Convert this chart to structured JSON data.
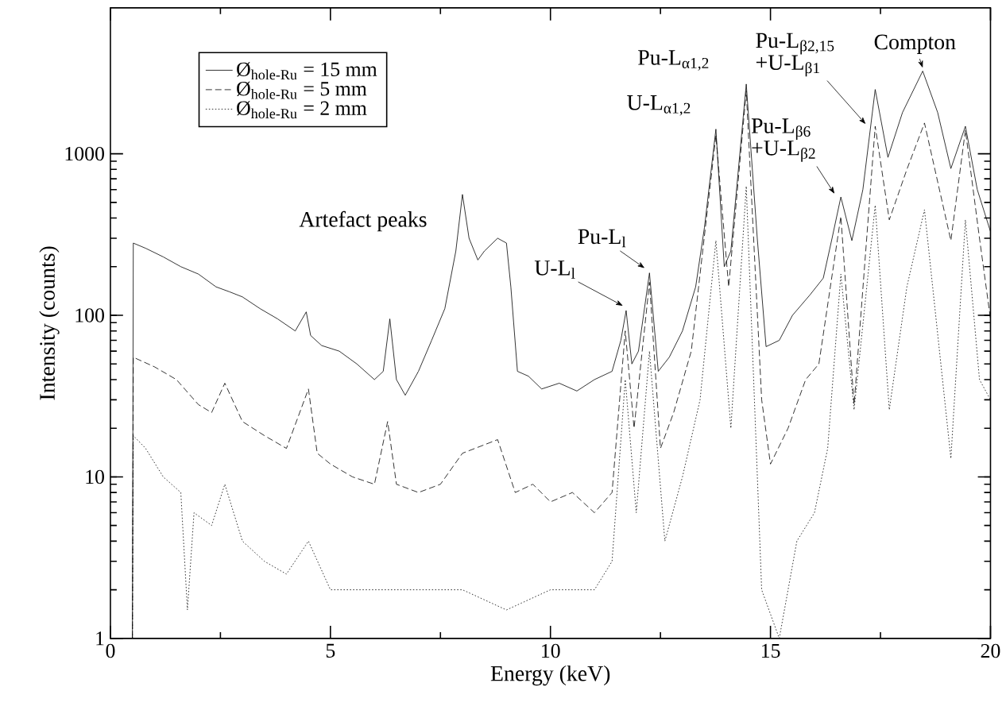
{
  "chart_data": {
    "type": "line",
    "xlabel": "Energy (keV)",
    "ylabel": "Intensity (counts)",
    "log": "y",
    "xlim": [
      0,
      20
    ],
    "ylim": [
      1,
      8000
    ],
    "xticks": [
      0,
      5,
      10,
      15,
      20
    ],
    "yticks": [
      1,
      10,
      100,
      1000
    ],
    "legend": "top left",
    "marker": "none",
    "series": [
      {
        "name": "Ø$_{hole-Ru}$ = 15 mm",
        "color": "#000000",
        "line_style": "solid",
        "x": [
          0.5,
          0.52,
          0.8,
          1.2,
          1.6,
          2.0,
          2.4,
          2.7,
          3.0,
          3.4,
          3.8,
          4.2,
          4.45,
          4.55,
          4.8,
          5.2,
          5.6,
          6.0,
          6.2,
          6.35,
          6.5,
          6.7,
          7.0,
          7.3,
          7.6,
          7.85,
          8.0,
          8.15,
          8.35,
          8.5,
          8.8,
          9.0,
          9.1,
          9.25,
          9.5,
          9.8,
          10.2,
          10.6,
          11.0,
          11.4,
          11.6,
          11.72,
          11.85,
          12.0,
          12.25,
          12.45,
          12.7,
          13.0,
          13.3,
          13.5,
          13.76,
          13.95,
          14.1,
          14.45,
          14.7,
          14.9,
          15.2,
          15.5,
          15.9,
          16.2,
          16.4,
          16.6,
          16.85,
          17.1,
          17.38,
          17.67,
          18.0,
          18.46,
          18.8,
          19.1,
          19.43,
          19.7,
          20.0
        ],
        "values": [
          1,
          280,
          260,
          230,
          200,
          180,
          150,
          140,
          130,
          110,
          95,
          80,
          105,
          75,
          65,
          60,
          50,
          40,
          45,
          95,
          40,
          32,
          45,
          70,
          110,
          250,
          560,
          300,
          220,
          250,
          300,
          280,
          150,
          45,
          42,
          35,
          38,
          34,
          40,
          45,
          70,
          107,
          50,
          60,
          183,
          45,
          55,
          80,
          150,
          350,
          1420,
          200,
          250,
          2700,
          300,
          64,
          70,
          100,
          134,
          170,
          300,
          540,
          290,
          600,
          2500,
          950,
          1800,
          3250,
          1800,
          810,
          1480,
          600,
          330
        ]
      },
      {
        "name": "Ø$_{hole-Ru}$ = 5 mm",
        "color": "#000000",
        "line_style": "dashed",
        "x": [
          0.5,
          0.52,
          1.0,
          1.5,
          2.0,
          2.3,
          2.6,
          3.0,
          3.5,
          4.0,
          4.5,
          4.7,
          5.0,
          5.5,
          6.0,
          6.3,
          6.5,
          7.0,
          7.5,
          8.0,
          8.8,
          9.2,
          9.6,
          10.0,
          10.5,
          11.0,
          11.4,
          11.7,
          11.9,
          12.25,
          12.5,
          12.8,
          13.2,
          13.76,
          14.05,
          14.45,
          14.8,
          15.0,
          15.4,
          15.8,
          16.1,
          16.6,
          16.9,
          17.38,
          17.7,
          18.1,
          18.5,
          19.1,
          19.43,
          19.75,
          20.0
        ],
        "values": [
          1,
          55,
          48,
          40,
          28,
          25,
          38,
          22,
          18,
          15,
          35,
          14,
          12,
          10,
          9,
          22,
          9,
          8,
          9,
          14,
          17,
          8,
          9,
          7,
          8,
          6,
          8,
          80,
          20,
          160,
          15,
          25,
          60,
          1300,
          150,
          2450,
          30,
          12,
          20,
          40,
          50,
          410,
          28,
          1480,
          390,
          800,
          1550,
          290,
          1400,
          300,
          95
        ]
      },
      {
        "name": "Ø$_{hole-Ru}$ = 2 mm",
        "color": "#000000",
        "line_style": "dotted",
        "x": [
          0.5,
          0.52,
          0.8,
          1.2,
          1.6,
          1.75,
          1.9,
          2.3,
          2.6,
          3.0,
          3.5,
          4.0,
          4.5,
          5.0,
          6.0,
          7.0,
          8.0,
          9.0,
          10.0,
          11.0,
          11.4,
          11.7,
          11.95,
          12.25,
          12.6,
          13.0,
          13.4,
          13.76,
          14.1,
          14.45,
          14.8,
          15.2,
          15.6,
          16.0,
          16.3,
          16.6,
          16.9,
          17.38,
          17.7,
          18.1,
          18.5,
          19.1,
          19.43,
          19.75,
          20.0
        ],
        "values": [
          1,
          18,
          15,
          10,
          8,
          1.5,
          6,
          5,
          9,
          4,
          3,
          2.5,
          4,
          2,
          2,
          2,
          2,
          1.5,
          2,
          2,
          3,
          40,
          6,
          60,
          4,
          10,
          30,
          290,
          20,
          630,
          2,
          1,
          4,
          6,
          15,
          180,
          26,
          480,
          26,
          150,
          450,
          13,
          390,
          40,
          30
        ]
      }
    ],
    "annotations": [
      {
        "text": "Artefact peaks",
        "x": 8.0,
        "y": 560
      },
      {
        "text": "U-L$_{l}$",
        "x": 11.72,
        "y": 107
      },
      {
        "text": "Pu-L$_{l}$",
        "x": 12.25,
        "y": 183
      },
      {
        "text": "U-L$_{α1,2}$",
        "x": 13.76,
        "y": 1420
      },
      {
        "text": "Pu-L$_{α1,2}$",
        "x": 14.45,
        "y": 2700
      },
      {
        "text": "Pu-L$_{β2,15}$ +U-L$_{β1}$",
        "x": 17.38,
        "y": 2500
      },
      {
        "text": "Pu-L$_{β6}$ +U-L$_{β2}$",
        "x": 16.6,
        "y": 540
      },
      {
        "text": "Compton",
        "x": 18.46,
        "y": 3250
      }
    ]
  }
}
